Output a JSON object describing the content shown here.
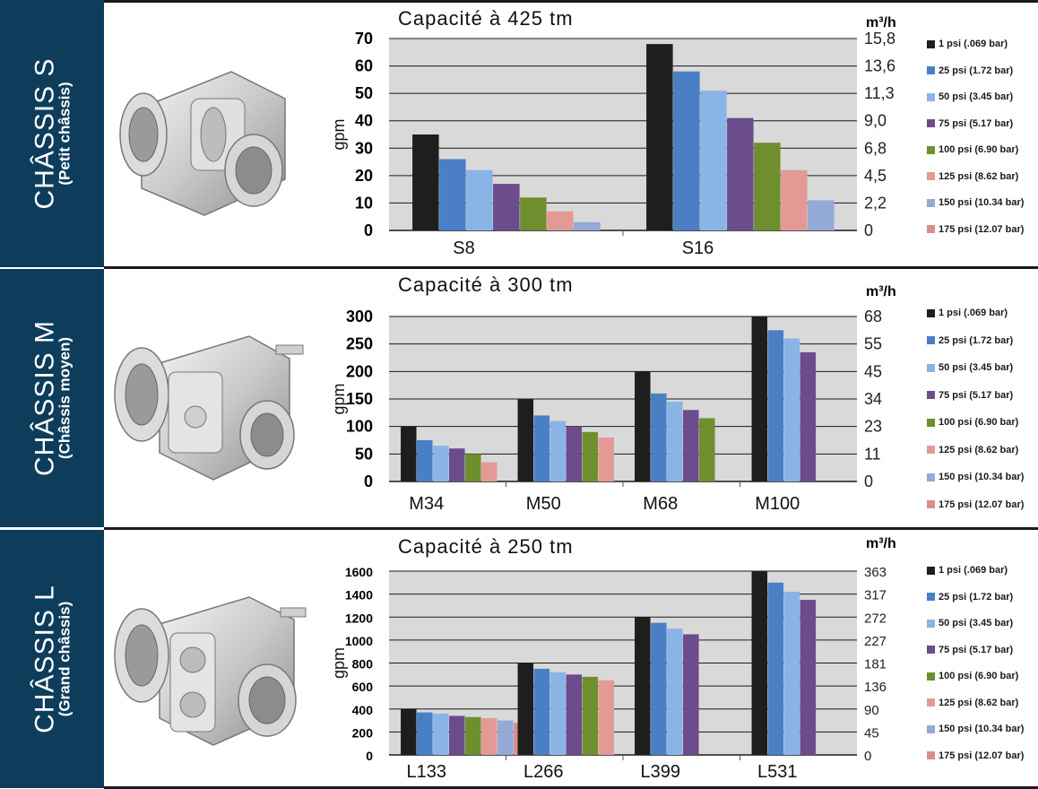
{
  "colors": {
    "sidebar": "#0e3d5c",
    "series": [
      "#1e1e1e",
      "#4a7fc6",
      "#8ab4e6",
      "#6b4c8c",
      "#6f8f2e",
      "#e39a94",
      "#94aad6",
      "#d98e8a"
    ]
  },
  "pump_icons": [
    "pump-s-icon",
    "pump-m-icon",
    "pump-l-icon"
  ],
  "panels": [
    {
      "sidebar_title": "CHÂSSIS S",
      "sidebar_sub": "(Petit châssis)",
      "unit_right": "m³/h",
      "yaxis_label": "gpm",
      "right_ticks": [
        "15,8",
        "13,6",
        "11,3",
        "9,0",
        "6,8",
        "4,5",
        "2,2",
        "0"
      ],
      "legend": [
        "1 psi (.069 bar)",
        "25 psi (1.72 bar)",
        "50 psi (3.45 bar)",
        "75 psi (5.17 bar)",
        "100 psi (6.90 bar)",
        "125 psi (8.62 bar)",
        "150 psi (10.34 bar)",
        "175 psi (12.07 bar)"
      ]
    },
    {
      "sidebar_title": "CHÂSSIS M",
      "sidebar_sub": "(Châssis moyen)",
      "unit_right": "m³/h",
      "yaxis_label": "gpm",
      "right_ticks": [
        "68",
        "55",
        "45",
        "34",
        "23",
        "11",
        "0"
      ],
      "legend": [
        "1 psi (.069 bar)",
        "25 psi (1.72 bar)",
        "50 psi (3.45 bar)",
        "75 psi (5.17 bar)",
        "100 psi (6.90 bar)",
        "125 psi (8.62 bar)",
        "150 psi (10.34 bar)",
        "175 psi (12.07 bar)"
      ]
    },
    {
      "sidebar_title": "CHÂSSIS L",
      "sidebar_sub": "(Grand châssis)",
      "unit_right": "m³/h",
      "yaxis_label": "gpm",
      "right_ticks": [
        "363",
        "317",
        "272",
        "227",
        "181",
        "136",
        "90",
        "45",
        "0"
      ],
      "legend": [
        "1 psi (.069 bar)",
        "25 psi (1.72 bar)",
        "50 psi (3.45 bar)",
        "75 psi (5.17 bar)",
        "100 psi (6.90 bar)",
        "125 psi (8.62 bar)",
        "150 psi (10.34 bar)",
        "175 psi (12.07 bar)"
      ]
    }
  ],
  "chart_data": [
    {
      "type": "bar",
      "title": "Capacité à 425 tm",
      "ylabel": "gpm",
      "ylabel_right": "m³/h",
      "categories": [
        "S8",
        "S16"
      ],
      "ylim": [
        0,
        70
      ],
      "yticks": [
        0,
        10,
        20,
        30,
        40,
        50,
        60,
        70
      ],
      "grid": true,
      "legend_position": "right",
      "series": [
        {
          "name": "1 psi (.069 bar)",
          "values": [
            35,
            68
          ]
        },
        {
          "name": "25 psi (1.72 bar)",
          "values": [
            26,
            58
          ]
        },
        {
          "name": "50 psi (3.45 bar)",
          "values": [
            22,
            51
          ]
        },
        {
          "name": "75 psi (5.17 bar)",
          "values": [
            17,
            41
          ]
        },
        {
          "name": "100 psi (6.90 bar)",
          "values": [
            12,
            32
          ]
        },
        {
          "name": "125 psi (8.62 bar)",
          "values": [
            7,
            22
          ]
        },
        {
          "name": "150 psi (10.34 bar)",
          "values": [
            3,
            11
          ]
        },
        {
          "name": "175 psi (12.07 bar)",
          "values": [
            null,
            null
          ]
        }
      ]
    },
    {
      "type": "bar",
      "title": "Capacité à 300 tm",
      "ylabel": "gpm",
      "ylabel_right": "m³/h",
      "categories": [
        "M34",
        "M50",
        "M68",
        "M100"
      ],
      "ylim": [
        0,
        300
      ],
      "yticks": [
        0,
        50,
        100,
        150,
        200,
        250,
        300
      ],
      "grid": true,
      "legend_position": "right",
      "series": [
        {
          "name": "1 psi (.069 bar)",
          "values": [
            100,
            150,
            200,
            300
          ]
        },
        {
          "name": "25 psi (1.72 bar)",
          "values": [
            75,
            120,
            160,
            275
          ]
        },
        {
          "name": "50 psi (3.45 bar)",
          "values": [
            65,
            110,
            145,
            260
          ]
        },
        {
          "name": "75 psi (5.17 bar)",
          "values": [
            60,
            100,
            130,
            235
          ]
        },
        {
          "name": "100 psi (6.90 bar)",
          "values": [
            50,
            90,
            115,
            null
          ]
        },
        {
          "name": "125 psi (8.62 bar)",
          "values": [
            35,
            80,
            null,
            null
          ]
        },
        {
          "name": "150 psi (10.34 bar)",
          "values": [
            null,
            null,
            null,
            null
          ]
        },
        {
          "name": "175 psi (12.07 bar)",
          "values": [
            null,
            null,
            null,
            null
          ]
        }
      ]
    },
    {
      "type": "bar",
      "title": "Capacité à 250 tm",
      "ylabel": "gpm",
      "ylabel_right": "m³/h",
      "categories": [
        "L133",
        "L266",
        "L399",
        "L531"
      ],
      "ylim": [
        0,
        1600
      ],
      "yticks": [
        0,
        200,
        400,
        600,
        800,
        1000,
        1200,
        1400,
        1600
      ],
      "grid": true,
      "legend_position": "right",
      "series": [
        {
          "name": "1 psi (.069 bar)",
          "values": [
            400,
            800,
            1200,
            1600
          ]
        },
        {
          "name": "25 psi (1.72 bar)",
          "values": [
            370,
            750,
            1150,
            1500
          ]
        },
        {
          "name": "50 psi (3.45 bar)",
          "values": [
            360,
            720,
            1100,
            1420
          ]
        },
        {
          "name": "75 psi (5.17 bar)",
          "values": [
            340,
            700,
            1050,
            1350
          ]
        },
        {
          "name": "100 psi (6.90 bar)",
          "values": [
            330,
            680,
            null,
            null
          ]
        },
        {
          "name": "125 psi (8.62 bar)",
          "values": [
            320,
            650,
            null,
            null
          ]
        },
        {
          "name": "150 psi (10.34 bar)",
          "values": [
            300,
            null,
            null,
            null
          ]
        },
        {
          "name": "175 psi (12.07 bar)",
          "values": [
            280,
            null,
            null,
            null
          ]
        }
      ]
    }
  ]
}
